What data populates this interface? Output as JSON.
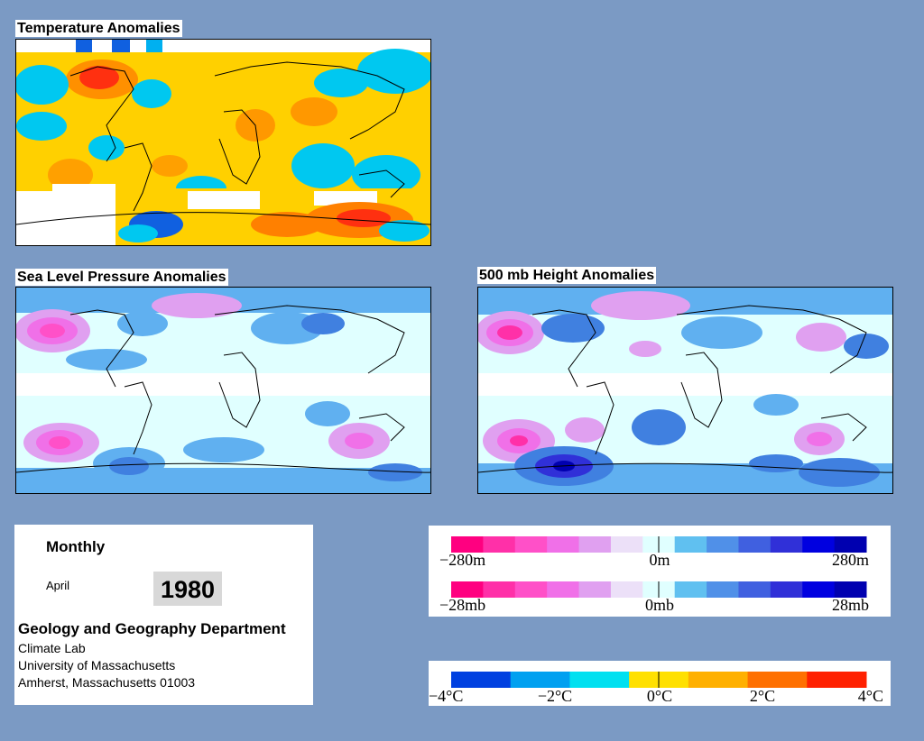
{
  "panels": {
    "temperature": {
      "title": "Temperature Anomalies"
    },
    "slp": {
      "title": "Sea Level Pressure Anomalies"
    },
    "height": {
      "title": "500 mb Height Anomalies"
    }
  },
  "info": {
    "period": "Monthly",
    "month": "April",
    "year": "1980",
    "department": "Geology and Geography Department",
    "address_lines": [
      "Climate Lab",
      "University of Massachusetts",
      "Amherst, Massachusetts 01003"
    ]
  },
  "legends": {
    "height": {
      "left": "−280m",
      "center": "0m",
      "right": "280m"
    },
    "pressure": {
      "left": "−28mb",
      "center": "0mb",
      "right": "28mb"
    },
    "temperature": {
      "labels": [
        "−4°C",
        "−2°C",
        "0°C",
        "2°C",
        "4°C"
      ]
    }
  },
  "colors": {
    "background": "#7b9ac4",
    "anomaly_scale": [
      "#ff0080",
      "#ff30a8",
      "#ff50c8",
      "#f070e8",
      "#e0a0f0",
      "#ece0f8",
      "#e0ffff",
      "#60c0f0",
      "#5090e8",
      "#4060e0",
      "#3030d8",
      "#0000e0",
      "#0000b0"
    ],
    "temp_scale": [
      "#0040e0",
      "#00a0f0",
      "#00e0f0",
      "#ffe000",
      "#ffb000",
      "#ff7000",
      "#ff2000"
    ]
  }
}
